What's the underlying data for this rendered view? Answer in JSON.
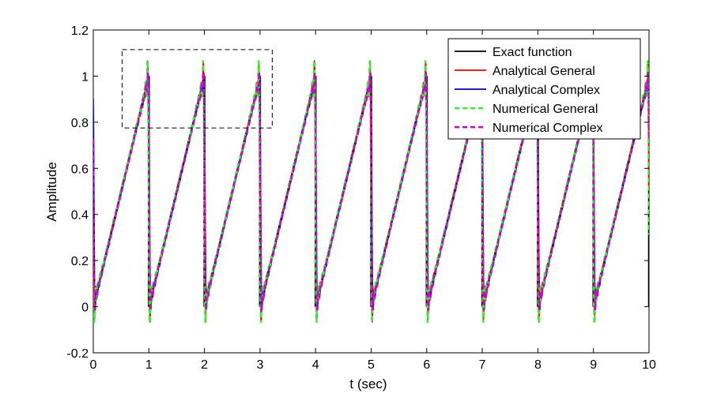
{
  "chart_data": {
    "type": "line",
    "title": "",
    "xlabel": "t (sec)",
    "ylabel": "Amplitude",
    "xlim": [
      0,
      10
    ],
    "ylim": [
      -0.2,
      1.2
    ],
    "xticks": [
      "0",
      "1",
      "2",
      "3",
      "4",
      "5",
      "6",
      "7",
      "8",
      "9",
      "10"
    ],
    "yticks": [
      "-0.2",
      "0",
      "0.2",
      "0.4",
      "0.6",
      "0.8",
      "1",
      "1.2"
    ],
    "grid": false,
    "legend_position": "top-right",
    "period": 1,
    "series": [
      {
        "name": "Exact function",
        "color": "#000000",
        "style": "solid",
        "function": "sawtooth t mod 1"
      },
      {
        "name": "Analytical General",
        "color": "#ff0000",
        "style": "solid",
        "function": "truncated Fourier series"
      },
      {
        "name": "Analytical Complex",
        "color": "#0000cc",
        "style": "solid",
        "function": "truncated complex Fourier series"
      },
      {
        "name": "Numerical General",
        "color": "#33ee33",
        "style": "dashed",
        "function": "numerical Fourier series"
      },
      {
        "name": "Numerical Complex",
        "color": "#cc00cc",
        "style": "dashed",
        "function": "numerical complex Fourier series"
      }
    ],
    "annotations": [
      {
        "type": "dashed-rectangle",
        "x_range": [
          0.52,
          3.22
        ],
        "y_range": [
          0.775,
          1.115
        ]
      }
    ]
  }
}
